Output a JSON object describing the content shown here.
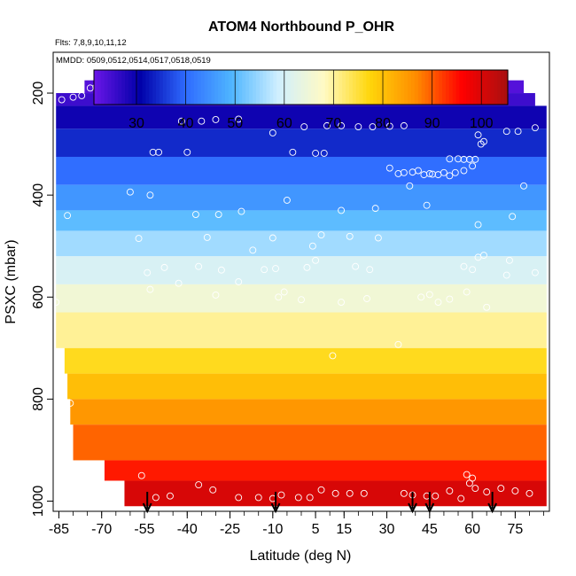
{
  "chart_data": {
    "type": "heatmap",
    "title": "ATOM4 Northbound P_OHR",
    "header_lines": [
      "Flts: 7,8,9,10,11,12",
      "MMDD: 0509,0512,0514,0517,0518,0519"
    ],
    "xlabel": "Latitude (deg N)",
    "ylabel": "PSXC (mbar)",
    "xlim": [
      -87,
      87
    ],
    "ylim": [
      1020,
      120
    ],
    "x_ticks": [
      -85,
      -70,
      -55,
      -40,
      -25,
      -10,
      5,
      15,
      30,
      45,
      60,
      75
    ],
    "x_minor_step": 5,
    "y_ticks": [
      200,
      400,
      600,
      800,
      1000
    ],
    "colorbar": {
      "range": [
        21,
        105
      ],
      "ticks": [
        30,
        40,
        50,
        60,
        70,
        80,
        90,
        100
      ],
      "colors": [
        "#6b16e8",
        "#0000a8",
        "#2f6bff",
        "#4fb6ff",
        "#cfefff",
        "#fffac4",
        "#ffd60a",
        "#ff8c00",
        "#ff0000",
        "#a81010"
      ]
    },
    "bands": [
      {
        "p_top": 175,
        "p_bot": 200,
        "lat_min": -76,
        "lat_max": 78,
        "value": 23
      },
      {
        "p_top": 200,
        "p_bot": 225,
        "lat_min": -86,
        "lat_max": 82,
        "value": 25
      },
      {
        "p_top": 225,
        "p_bot": 270,
        "lat_min": -86,
        "lat_max": 86,
        "value": 29
      },
      {
        "p_top": 270,
        "p_bot": 325,
        "lat_min": -86,
        "lat_max": 86,
        "value": 34
      },
      {
        "p_top": 325,
        "p_bot": 380,
        "lat_min": -86,
        "lat_max": 86,
        "value": 40
      },
      {
        "p_top": 380,
        "p_bot": 430,
        "lat_min": -86,
        "lat_max": 86,
        "value": 45
      },
      {
        "p_top": 430,
        "p_bot": 470,
        "lat_min": -86,
        "lat_max": 86,
        "value": 50
      },
      {
        "p_top": 470,
        "p_bot": 520,
        "lat_min": -86,
        "lat_max": 86,
        "value": 55
      },
      {
        "p_top": 520,
        "p_bot": 575,
        "lat_min": -86,
        "lat_max": 86,
        "value": 60
      },
      {
        "p_top": 575,
        "p_bot": 630,
        "lat_min": -86,
        "lat_max": 86,
        "value": 65
      },
      {
        "p_top": 630,
        "p_bot": 700,
        "lat_min": -86,
        "lat_max": 86,
        "value": 70
      },
      {
        "p_top": 700,
        "p_bot": 750,
        "lat_min": -83,
        "lat_max": 86,
        "value": 76
      },
      {
        "p_top": 750,
        "p_bot": 800,
        "lat_min": -82,
        "lat_max": 86,
        "value": 80
      },
      {
        "p_top": 800,
        "p_bot": 850,
        "lat_min": -81,
        "lat_max": 86,
        "value": 85
      },
      {
        "p_top": 850,
        "p_bot": 920,
        "lat_min": -80,
        "lat_max": 86,
        "value": 89
      },
      {
        "p_top": 920,
        "p_bot": 960,
        "lat_min": -69,
        "lat_max": 86,
        "value": 94
      },
      {
        "p_top": 960,
        "p_bot": 1010,
        "lat_min": -62,
        "lat_max": 86,
        "value": 100
      }
    ],
    "obs_points": [
      [
        -74,
        190
      ],
      [
        -72,
        188
      ],
      [
        -70,
        188
      ],
      [
        -67,
        190
      ],
      [
        -84,
        213
      ],
      [
        -80,
        208
      ],
      [
        -77,
        205
      ],
      [
        -35,
        255
      ],
      [
        -30,
        252
      ],
      [
        -22,
        251
      ],
      [
        -5,
        211
      ],
      [
        -10,
        278
      ],
      [
        -42,
        255
      ],
      [
        1,
        266
      ],
      [
        9,
        264
      ],
      [
        14,
        264
      ],
      [
        20,
        266
      ],
      [
        25,
        266
      ],
      [
        31,
        265
      ],
      [
        36,
        264
      ],
      [
        65,
        212
      ],
      [
        67,
        210
      ],
      [
        69,
        216
      ],
      [
        66,
        215
      ],
      [
        72,
        275
      ],
      [
        76,
        275
      ],
      [
        82,
        268
      ],
      [
        62,
        282
      ],
      [
        64,
        295
      ],
      [
        -52,
        316
      ],
      [
        -50,
        316
      ],
      [
        -40,
        316
      ],
      [
        -3,
        316
      ],
      [
        5,
        318
      ],
      [
        8,
        318
      ],
      [
        31,
        347
      ],
      [
        34,
        358
      ],
      [
        36,
        356
      ],
      [
        39,
        355
      ],
      [
        41,
        352
      ],
      [
        43,
        360
      ],
      [
        45,
        358
      ],
      [
        46,
        359
      ],
      [
        48,
        360
      ],
      [
        50,
        356
      ],
      [
        52,
        362
      ],
      [
        54,
        356
      ],
      [
        57,
        352
      ],
      [
        60,
        343
      ],
      [
        52,
        329
      ],
      [
        55,
        329
      ],
      [
        57,
        330
      ],
      [
        59,
        330
      ],
      [
        61,
        330
      ],
      [
        63,
        300
      ],
      [
        38,
        382
      ],
      [
        44,
        420
      ],
      [
        -60,
        394
      ],
      [
        -82,
        440
      ],
      [
        -53,
        400
      ],
      [
        -37,
        438
      ],
      [
        -29,
        438
      ],
      [
        -21,
        432
      ],
      [
        -5,
        410
      ],
      [
        14,
        430
      ],
      [
        26,
        426
      ],
      [
        62,
        458
      ],
      [
        74,
        442
      ],
      [
        78,
        382
      ],
      [
        -57,
        485
      ],
      [
        -33,
        483
      ],
      [
        -10,
        484
      ],
      [
        4,
        500
      ],
      [
        7,
        478
      ],
      [
        17,
        481
      ],
      [
        27,
        484
      ],
      [
        -48,
        542
      ],
      [
        -43,
        573
      ],
      [
        -36,
        540
      ],
      [
        -28,
        547
      ],
      [
        -17,
        508
      ],
      [
        -13,
        546
      ],
      [
        -9,
        544
      ],
      [
        -6,
        590
      ],
      [
        2,
        542
      ],
      [
        5,
        528
      ],
      [
        19,
        540
      ],
      [
        24,
        546
      ],
      [
        57,
        540
      ],
      [
        60,
        546
      ],
      [
        62,
        522
      ],
      [
        64,
        518
      ],
      [
        72,
        557
      ],
      [
        82,
        552
      ],
      [
        73,
        528
      ],
      [
        -22,
        570
      ],
      [
        -8,
        600
      ],
      [
        -30,
        596
      ],
      [
        -54,
        552
      ],
      [
        -53,
        585
      ],
      [
        0,
        605
      ],
      [
        14,
        610
      ],
      [
        23,
        603
      ],
      [
        42,
        600
      ],
      [
        45,
        595
      ],
      [
        48,
        610
      ],
      [
        52,
        604
      ],
      [
        58,
        590
      ],
      [
        65,
        620
      ],
      [
        -86,
        610
      ],
      [
        34,
        693
      ],
      [
        11,
        715
      ],
      [
        -81,
        808
      ],
      [
        -56,
        950
      ],
      [
        -51,
        993
      ],
      [
        -46,
        990
      ],
      [
        -36,
        968
      ],
      [
        -31,
        978
      ],
      [
        -22,
        993
      ],
      [
        -15,
        993
      ],
      [
        -10,
        995
      ],
      [
        -7,
        988
      ],
      [
        -1,
        993
      ],
      [
        3,
        993
      ],
      [
        7,
        978
      ],
      [
        12,
        985
      ],
      [
        17,
        985
      ],
      [
        22,
        985
      ],
      [
        36,
        985
      ],
      [
        39,
        988
      ],
      [
        44,
        990
      ],
      [
        47,
        990
      ],
      [
        52,
        980
      ],
      [
        56,
        995
      ],
      [
        58,
        948
      ],
      [
        59,
        965
      ],
      [
        60,
        955
      ],
      [
        61,
        975
      ],
      [
        65,
        982
      ],
      [
        70,
        975
      ],
      [
        75,
        980
      ],
      [
        80,
        985
      ]
    ],
    "flight_markers_lat": [
      -54,
      -9,
      39,
      45,
      67
    ]
  }
}
